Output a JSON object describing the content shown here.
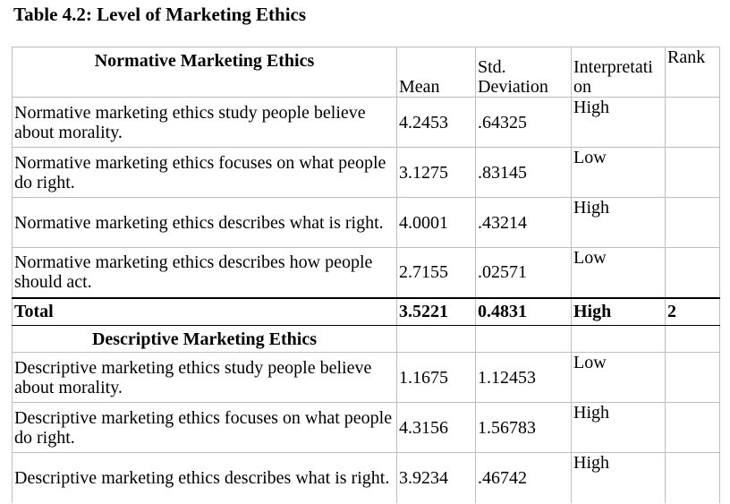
{
  "caption": "Table 4.2: Level of Marketing Ethics",
  "headers": {
    "section1": "Normative Marketing Ethics",
    "mean": "Mean",
    "std_line1": "Std.",
    "std_line2": "Deviation",
    "interp_line1": "Interpretati",
    "interp_line2": "on",
    "rank": "Rank"
  },
  "normative_rows": [
    {
      "statement": "Normative marketing ethics study people believe about morality.",
      "mean": "4.2453",
      "std": ".64325",
      "interpretation": "High",
      "rank": ""
    },
    {
      "statement": "Normative marketing ethics focuses on what people do right.",
      "mean": "3.1275",
      "std": ".83145",
      "interpretation": "Low",
      "rank": ""
    },
    {
      "statement": "Normative marketing ethics describes what is right.",
      "mean": "4.0001",
      "std": ".43214",
      "interpretation": "High",
      "rank": ""
    },
    {
      "statement": "Normative marketing ethics describes how people should act.",
      "mean": "2.7155",
      "std": ".02571",
      "interpretation": "Low",
      "rank": ""
    }
  ],
  "total": {
    "label": "Total",
    "mean": "3.5221",
    "std": "0.4831",
    "interpretation": "High",
    "rank": "2"
  },
  "section2": "Descriptive Marketing Ethics",
  "descriptive_rows": [
    {
      "statement": "Descriptive marketing ethics study people believe about morality.",
      "mean": "1.1675",
      "std": "1.12453",
      "interpretation": "Low",
      "rank": ""
    },
    {
      "statement": "Descriptive marketing ethics focuses on what people do right.",
      "mean": "4.3156",
      "std": "1.56783",
      "interpretation": "High",
      "rank": ""
    },
    {
      "statement": "Descriptive marketing ethics describes what is right.",
      "mean": "3.9234",
      "std": ".46742",
      "interpretation": "High",
      "rank": ""
    }
  ]
}
